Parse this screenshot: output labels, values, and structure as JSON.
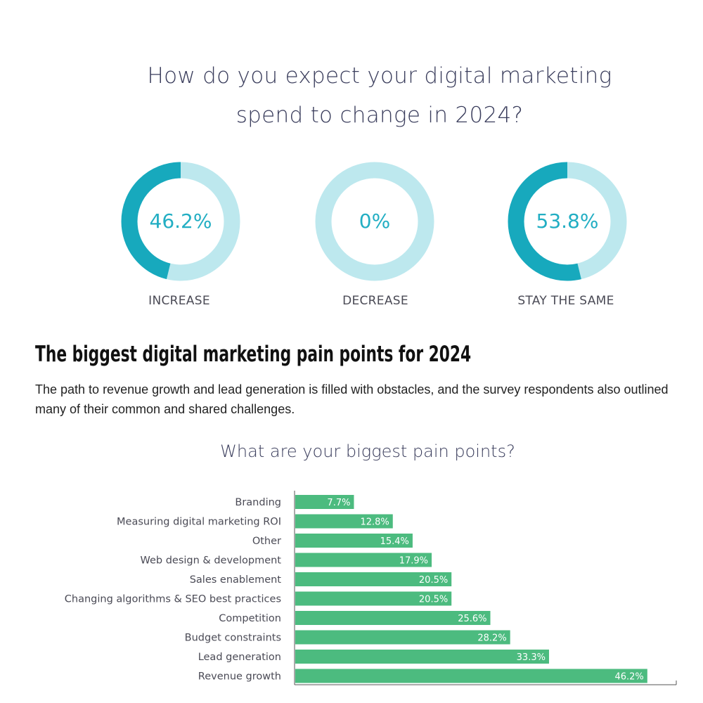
{
  "question": {
    "line1": "How do you expect your digital marketing",
    "line2": "spend to change in 2024?"
  },
  "donuts": [
    {
      "value_text": "46.2%",
      "value": 46.2,
      "label": "INCREASE"
    },
    {
      "value_text": "0%",
      "value": 0,
      "label": "DECREASE"
    },
    {
      "value_text": "53.8%",
      "value": 53.8,
      "label": "STAY THE SAME"
    }
  ],
  "colors": {
    "donut_fill": "#17a9bd",
    "donut_track": "#bde8ee",
    "donut_text": "#22aec3",
    "bar": "#4cbb7f",
    "bar_label": "#ffffff"
  },
  "section": {
    "heading": "The biggest digital marketing pain points for 2024",
    "paragraph": "The path to revenue growth and lead generation is filled with obstacles, and the survey respondents also outlined many of their common and shared challenges."
  },
  "chart_data": {
    "type": "bar",
    "orientation": "horizontal",
    "title": "What are your biggest pain points?",
    "xlabel": "",
    "ylabel": "",
    "categories": [
      "Branding",
      "Measuring digital marketing ROI",
      "Other",
      "Web design & development",
      "Sales enablement",
      "Changing algorithms & SEO best practices",
      "Competition",
      "Budget constraints",
      "Lead generation",
      "Revenue growth"
    ],
    "values": [
      7.7,
      12.8,
      15.4,
      17.9,
      20.5,
      20.5,
      25.6,
      28.2,
      33.3,
      46.2
    ],
    "value_labels": [
      "7.7%",
      "12.8%",
      "15.4%",
      "17.9%",
      "20.5%",
      "20.5%",
      "25.6%",
      "28.2%",
      "33.3%",
      "46.2%"
    ],
    "xlim": [
      0,
      50
    ],
    "grid": false,
    "legend": "none"
  }
}
